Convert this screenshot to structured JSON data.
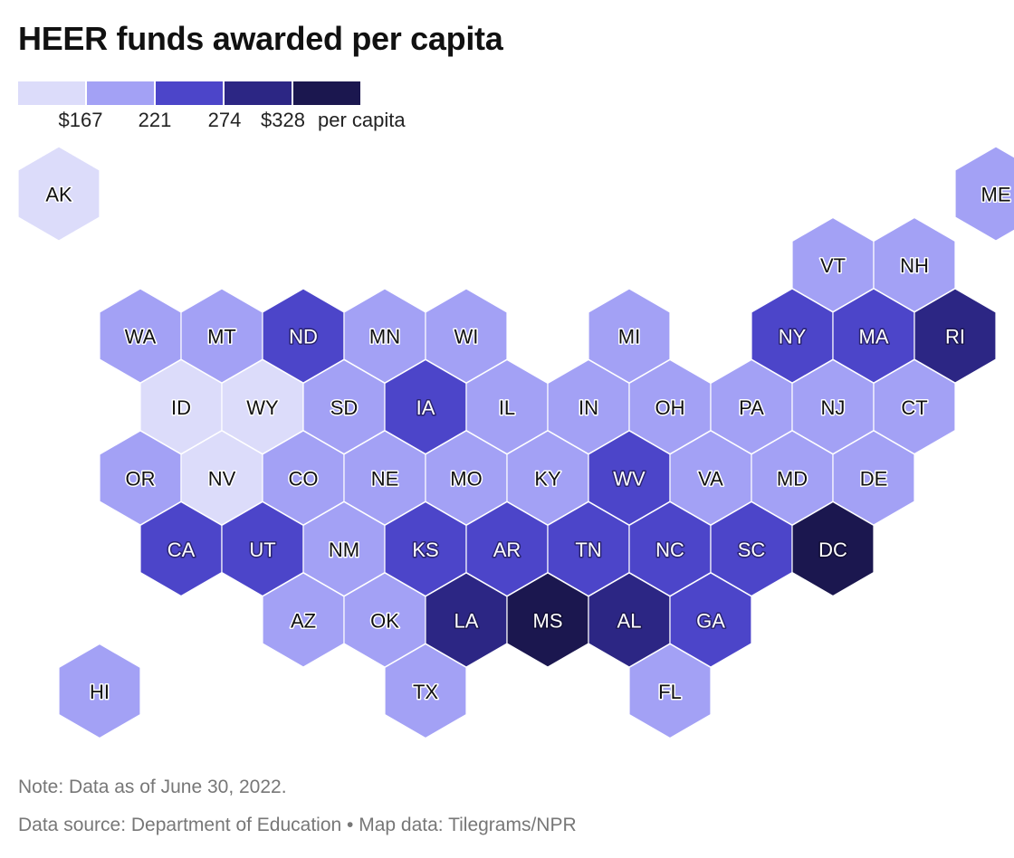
{
  "title": "HEER funds awarded per capita",
  "legend": {
    "labels": [
      "$167",
      "221",
      "274",
      "$328"
    ],
    "unit": "per capita",
    "colors": [
      "#dcdcfa",
      "#a3a1f5",
      "#4c45c9",
      "#2c2684",
      "#1b174f"
    ]
  },
  "notes": {
    "note": "Note: Data as of June 30, 2022.",
    "source": "Data source: Department of Education • Map data: Tilegrams/NPR"
  },
  "states": [
    {
      "abbr": "AK",
      "bin": 0,
      "col": 0,
      "row": 0
    },
    {
      "abbr": "ME",
      "bin": 1,
      "col": 11.5,
      "row": 0
    },
    {
      "abbr": "VT",
      "bin": 1,
      "col": 9.5,
      "row": 1
    },
    {
      "abbr": "NH",
      "bin": 1,
      "col": 10.5,
      "row": 1
    },
    {
      "abbr": "WA",
      "bin": 1,
      "col": 1,
      "row": 2
    },
    {
      "abbr": "MT",
      "bin": 1,
      "col": 2,
      "row": 2
    },
    {
      "abbr": "ND",
      "bin": 2,
      "col": 3,
      "row": 2
    },
    {
      "abbr": "MN",
      "bin": 1,
      "col": 4,
      "row": 2
    },
    {
      "abbr": "WI",
      "bin": 1,
      "col": 5,
      "row": 2
    },
    {
      "abbr": "MI",
      "bin": 1,
      "col": 7,
      "row": 2
    },
    {
      "abbr": "NY",
      "bin": 2,
      "col": 9,
      "row": 2
    },
    {
      "abbr": "MA",
      "bin": 2,
      "col": 10,
      "row": 2
    },
    {
      "abbr": "RI",
      "bin": 3,
      "col": 11,
      "row": 2
    },
    {
      "abbr": "ID",
      "bin": 0,
      "col": 1.5,
      "row": 3
    },
    {
      "abbr": "WY",
      "bin": 0,
      "col": 2.5,
      "row": 3
    },
    {
      "abbr": "SD",
      "bin": 1,
      "col": 3.5,
      "row": 3
    },
    {
      "abbr": "IA",
      "bin": 2,
      "col": 4.5,
      "row": 3
    },
    {
      "abbr": "IL",
      "bin": 1,
      "col": 5.5,
      "row": 3
    },
    {
      "abbr": "IN",
      "bin": 1,
      "col": 6.5,
      "row": 3
    },
    {
      "abbr": "OH",
      "bin": 1,
      "col": 7.5,
      "row": 3
    },
    {
      "abbr": "PA",
      "bin": 1,
      "col": 8.5,
      "row": 3
    },
    {
      "abbr": "NJ",
      "bin": 1,
      "col": 9.5,
      "row": 3
    },
    {
      "abbr": "CT",
      "bin": 1,
      "col": 10.5,
      "row": 3
    },
    {
      "abbr": "OR",
      "bin": 1,
      "col": 1,
      "row": 4
    },
    {
      "abbr": "NV",
      "bin": 0,
      "col": 2,
      "row": 4
    },
    {
      "abbr": "CO",
      "bin": 1,
      "col": 3,
      "row": 4
    },
    {
      "abbr": "NE",
      "bin": 1,
      "col": 4,
      "row": 4
    },
    {
      "abbr": "MO",
      "bin": 1,
      "col": 5,
      "row": 4
    },
    {
      "abbr": "KY",
      "bin": 1,
      "col": 6,
      "row": 4
    },
    {
      "abbr": "WV",
      "bin": 2,
      "col": 7,
      "row": 4
    },
    {
      "abbr": "VA",
      "bin": 1,
      "col": 8,
      "row": 4
    },
    {
      "abbr": "MD",
      "bin": 1,
      "col": 9,
      "row": 4
    },
    {
      "abbr": "DE",
      "bin": 1,
      "col": 10,
      "row": 4
    },
    {
      "abbr": "CA",
      "bin": 2,
      "col": 1.5,
      "row": 5
    },
    {
      "abbr": "UT",
      "bin": 2,
      "col": 2.5,
      "row": 5
    },
    {
      "abbr": "NM",
      "bin": 1,
      "col": 3.5,
      "row": 5
    },
    {
      "abbr": "KS",
      "bin": 2,
      "col": 4.5,
      "row": 5
    },
    {
      "abbr": "AR",
      "bin": 2,
      "col": 5.5,
      "row": 5
    },
    {
      "abbr": "TN",
      "bin": 2,
      "col": 6.5,
      "row": 5
    },
    {
      "abbr": "NC",
      "bin": 2,
      "col": 7.5,
      "row": 5
    },
    {
      "abbr": "SC",
      "bin": 2,
      "col": 8.5,
      "row": 5
    },
    {
      "abbr": "DC",
      "bin": 4,
      "col": 9.5,
      "row": 5
    },
    {
      "abbr": "AZ",
      "bin": 1,
      "col": 3,
      "row": 6
    },
    {
      "abbr": "OK",
      "bin": 1,
      "col": 4,
      "row": 6
    },
    {
      "abbr": "LA",
      "bin": 3,
      "col": 5,
      "row": 6
    },
    {
      "abbr": "MS",
      "bin": 4,
      "col": 6,
      "row": 6
    },
    {
      "abbr": "AL",
      "bin": 3,
      "col": 7,
      "row": 6
    },
    {
      "abbr": "GA",
      "bin": 2,
      "col": 8,
      "row": 6
    },
    {
      "abbr": "HI",
      "bin": 1,
      "col": 0.5,
      "row": 7
    },
    {
      "abbr": "TX",
      "bin": 1,
      "col": 4.5,
      "row": 7
    },
    {
      "abbr": "FL",
      "bin": 1,
      "col": 7.5,
      "row": 7
    }
  ]
}
